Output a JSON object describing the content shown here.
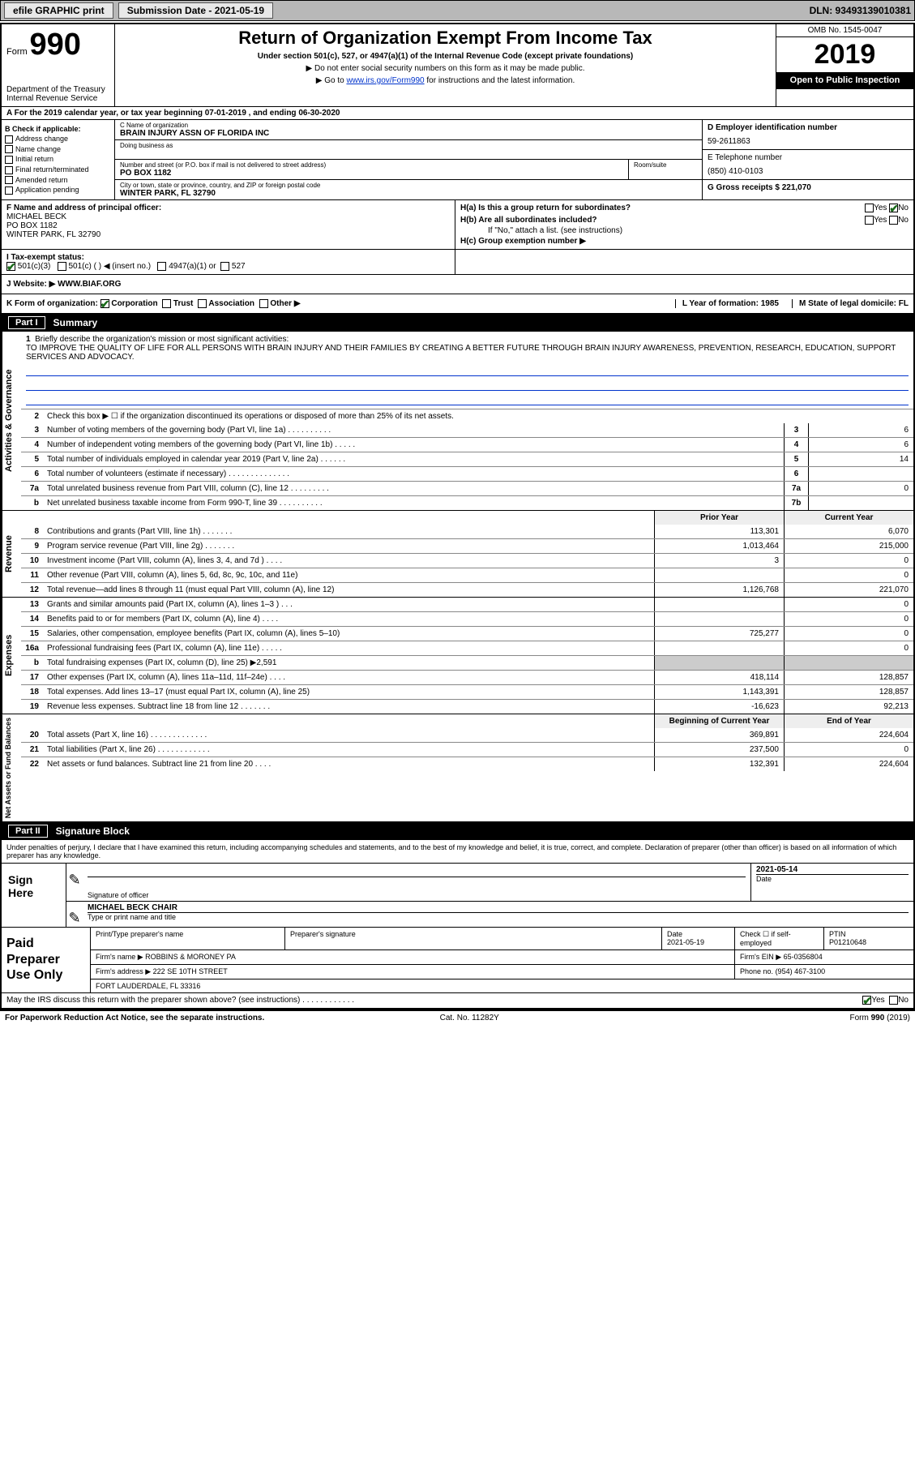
{
  "topbar": {
    "efile": "efile GRAPHIC print",
    "submission": "Submission Date - 2021-05-19",
    "dln": "DLN: 93493139010381"
  },
  "header": {
    "form_label": "Form",
    "form_num": "990",
    "dept": "Department of the Treasury\nInternal Revenue Service",
    "title": "Return of Organization Exempt From Income Tax",
    "sub": "Under section 501(c), 527, or 4947(a)(1) of the Internal Revenue Code (except private foundations)",
    "note1": "▶ Do not enter social security numbers on this form as it may be made public.",
    "note2_pre": "▶ Go to ",
    "note2_link": "www.irs.gov/Form990",
    "note2_post": " for instructions and the latest information.",
    "omb": "OMB No. 1545-0047",
    "year": "2019",
    "inspect": "Open to Public Inspection"
  },
  "line_a": "A For the 2019 calendar year, or tax year beginning 07-01-2019   , and ending 06-30-2020",
  "checkb": {
    "lbl": "B Check if applicable:",
    "opts": [
      "Address change",
      "Name change",
      "Initial return",
      "Final return/terminated",
      "Amended return",
      "Application pending"
    ]
  },
  "orgname": {
    "c_lbl": "C Name of organization",
    "c_val": "BRAIN INJURY ASSN OF FLORIDA INC",
    "dba_lbl": "Doing business as",
    "addr_lbl": "Number and street (or P.O. box if mail is not delivered to street address)",
    "addr_val": "PO BOX 1182",
    "room_lbl": "Room/suite",
    "city_lbl": "City or town, state or province, country, and ZIP or foreign postal code",
    "city_val": "WINTER PARK, FL  32790"
  },
  "right": {
    "d_lbl": "D Employer identification number",
    "d_val": "59-2611863",
    "e_lbl": "E Telephone number",
    "e_val": "(850) 410-0103",
    "g_lbl": "G Gross receipts $ 221,070"
  },
  "fgh": {
    "f_lbl": "F Name and address of principal officer:",
    "f_val": "MICHAEL BECK\nPO BOX 1182\nWINTER PARK, FL  32790",
    "ha": "H(a)  Is this a group return for subordinates?",
    "hb": "H(b)  Are all subordinates included?",
    "hb_note": "If \"No,\" attach a list. (see instructions)",
    "hc": "H(c)  Group exemption number ▶",
    "yes": "Yes",
    "no": "No"
  },
  "tax": {
    "lbl": "I    Tax-exempt status:",
    "c3": "501(c)(3)",
    "c": "501(c) (  ) ◀ (insert no.)",
    "a1": "4947(a)(1) or",
    "s527": "527"
  },
  "website": {
    "lbl": "J   Website: ▶",
    "val": "WWW.BIAF.ORG"
  },
  "korg": {
    "lbl": "K Form of organization:",
    "corp": "Corporation",
    "trust": "Trust",
    "assoc": "Association",
    "other": "Other ▶",
    "l": "L Year of formation: 1985",
    "m": "M State of legal domicile: FL"
  },
  "part1": {
    "part": "Part I",
    "title": "Summary"
  },
  "mission": {
    "n": "1",
    "lbl": "Briefly describe the organization's mission or most significant activities:",
    "txt": "TO IMPROVE THE QUALITY OF LIFE FOR ALL PERSONS WITH BRAIN INJURY AND THEIR FAMILIES BY CREATING A BETTER FUTURE THROUGH BRAIN INJURY AWARENESS, PREVENTION, RESEARCH, EDUCATION, SUPPORT SERVICES AND ADVOCACY."
  },
  "gov": {
    "tab": "Activities & Governance",
    "l2": "Check this box ▶ ☐ if the organization discontinued its operations or disposed of more than 25% of its net assets.",
    "rows": [
      {
        "n": "3",
        "d": "Number of voting members of the governing body (Part VI, line 1a)   .   .   .   .   .   .   .   .   .   .",
        "b": "3",
        "v": "6"
      },
      {
        "n": "4",
        "d": "Number of independent voting members of the governing body (Part VI, line 1b)   .   .   .   .   .",
        "b": "4",
        "v": "6"
      },
      {
        "n": "5",
        "d": "Total number of individuals employed in calendar year 2019 (Part V, line 2a)   .   .   .   .   .   .",
        "b": "5",
        "v": "14"
      },
      {
        "n": "6",
        "d": "Total number of volunteers (estimate if necessary)   .   .   .   .   .   .   .   .   .   .   .   .   .   .",
        "b": "6",
        "v": ""
      },
      {
        "n": "7a",
        "d": "Total unrelated business revenue from Part VIII, column (C), line 12   .   .   .   .   .   .   .   .   .",
        "b": "7a",
        "v": "0"
      },
      {
        "n": "b",
        "d": "Net unrelated business taxable income from Form 990-T, line 39   .   .   .   .   .   .   .   .   .   .",
        "b": "7b",
        "v": ""
      }
    ]
  },
  "pycy": {
    "py": "Prior Year",
    "cy": "Current Year"
  },
  "rev": {
    "tab": "Revenue",
    "rows": [
      {
        "n": "8",
        "d": "Contributions and grants (Part VIII, line 1h)   .   .   .   .   .   .   .",
        "pv": "113,301",
        "cv": "6,070"
      },
      {
        "n": "9",
        "d": "Program service revenue (Part VIII, line 2g)   .   .   .   .   .   .   .",
        "pv": "1,013,464",
        "cv": "215,000"
      },
      {
        "n": "10",
        "d": "Investment income (Part VIII, column (A), lines 3, 4, and 7d )   .   .   .   .",
        "pv": "3",
        "cv": "0"
      },
      {
        "n": "11",
        "d": "Other revenue (Part VIII, column (A), lines 5, 6d, 8c, 9c, 10c, and 11e)",
        "pv": "",
        "cv": "0"
      },
      {
        "n": "12",
        "d": "Total revenue—add lines 8 through 11 (must equal Part VIII, column (A), line 12)",
        "pv": "1,126,768",
        "cv": "221,070"
      }
    ]
  },
  "exp": {
    "tab": "Expenses",
    "rows": [
      {
        "n": "13",
        "d": "Grants and similar amounts paid (Part IX, column (A), lines 1–3 )   .   .   .",
        "pv": "",
        "cv": "0"
      },
      {
        "n": "14",
        "d": "Benefits paid to or for members (Part IX, column (A), line 4)   .   .   .   .",
        "pv": "",
        "cv": "0"
      },
      {
        "n": "15",
        "d": "Salaries, other compensation, employee benefits (Part IX, column (A), lines 5–10)",
        "pv": "725,277",
        "cv": "0"
      },
      {
        "n": "16a",
        "d": "Professional fundraising fees (Part IX, column (A), line 11e)   .   .   .   .   .",
        "pv": "",
        "cv": "0"
      },
      {
        "n": "b",
        "d": "Total fundraising expenses (Part IX, column (D), line 25) ▶2,591",
        "pv": "__shade__",
        "cv": "__shade__"
      },
      {
        "n": "17",
        "d": "Other expenses (Part IX, column (A), lines 11a–11d, 11f–24e)   .   .   .   .",
        "pv": "418,114",
        "cv": "128,857"
      },
      {
        "n": "18",
        "d": "Total expenses. Add lines 13–17 (must equal Part IX, column (A), line 25)",
        "pv": "1,143,391",
        "cv": "128,857"
      },
      {
        "n": "19",
        "d": "Revenue less expenses. Subtract line 18 from line 12   .   .   .   .   .   .   .",
        "pv": "-16,623",
        "cv": "92,213"
      }
    ]
  },
  "net": {
    "tab": "Net Assets or Fund Balances",
    "hdr_py": "Beginning of Current Year",
    "hdr_cy": "End of Year",
    "rows": [
      {
        "n": "20",
        "d": "Total assets (Part X, line 16)   .   .   .   .   .   .   .   .   .   .   .   .   .",
        "pv": "369,891",
        "cv": "224,604"
      },
      {
        "n": "21",
        "d": "Total liabilities (Part X, line 26)   .   .   .   .   .   .   .   .   .   .   .   .",
        "pv": "237,500",
        "cv": "0"
      },
      {
        "n": "22",
        "d": "Net assets or fund balances. Subtract line 21 from line 20   .   .   .   .",
        "pv": "132,391",
        "cv": "224,604"
      }
    ]
  },
  "part2": {
    "part": "Part II",
    "title": "Signature Block"
  },
  "sig": {
    "intro": "Under penalties of perjury, I declare that I have examined this return, including accompanying schedules and statements, and to the best of my knowledge and belief, it is true, correct, and complete. Declaration of preparer (other than officer) is based on all information of which preparer has any knowledge.",
    "here": "Sign Here",
    "sig_lbl": "Signature of officer",
    "date_lbl": "Date",
    "date_val": "2021-05-14",
    "name_val": "MICHAEL BECK CHAIR",
    "name_lbl": "Type or print name and title"
  },
  "paid": {
    "lbl": "Paid Preparer Use Only",
    "h1": "Print/Type preparer's name",
    "h2": "Preparer's signature",
    "h3": "Date",
    "d3": "2021-05-19",
    "h4": "Check ☐ if self-employed",
    "h5": "PTIN",
    "ptin": "P01210648",
    "firm_lbl": "Firm's name     ▶",
    "firm": "ROBBINS & MORONEY PA",
    "ein_lbl": "Firm's EIN ▶",
    "ein": "65-0356804",
    "addr_lbl": "Firm's address ▶",
    "addr1": "222 SE 10TH STREET",
    "addr2": "FORT LAUDERDALE, FL  33316",
    "phone_lbl": "Phone no.",
    "phone": "(954) 467-3100",
    "discuss": "May the IRS discuss this return with the preparer shown above? (see instructions)   .   .   .   .   .   .   .   .   .   .   .   .",
    "yes": "Yes",
    "no": "No"
  },
  "foot": {
    "l": "For Paperwork Reduction Act Notice, see the separate instructions.",
    "m": "Cat. No. 11282Y",
    "r": "Form 990 (2019)"
  },
  "colors": {
    "link": "#0033cc",
    "black": "#000000",
    "check_green": "#1a6b1a",
    "shade": "#cccccc"
  }
}
